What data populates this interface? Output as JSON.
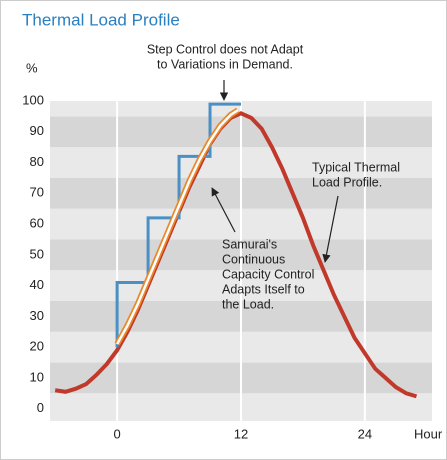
{
  "chart_data": {
    "type": "line",
    "title": "Thermal Load Profile",
    "ylabel": "%",
    "xlabel": "Hour",
    "xlim": [
      -6.5,
      30.5
    ],
    "ylim": [
      -4,
      100
    ],
    "xticks": [
      0,
      12,
      24
    ],
    "yticks": [
      0,
      10,
      20,
      30,
      40,
      50,
      60,
      70,
      80,
      90,
      100
    ],
    "grid": true,
    "series": [
      {
        "name": "Typical Thermal Load Profile",
        "color": "#c0392b",
        "x": [
          -6,
          -5,
          -4,
          -3,
          -2,
          -1,
          0,
          1,
          2,
          3,
          4,
          5,
          6,
          7,
          8,
          9,
          10,
          11,
          12,
          13,
          14,
          15,
          16,
          17,
          18,
          19,
          20,
          21,
          22,
          23,
          24,
          25,
          26,
          27,
          28,
          29
        ],
        "values": [
          6,
          5.5,
          6.5,
          8,
          11,
          14.5,
          19,
          25,
          32,
          40,
          48,
          56,
          64,
          72,
          79,
          86,
          91,
          94.5,
          96,
          94.5,
          91,
          85,
          78,
          70,
          62,
          53,
          45,
          37,
          30,
          23,
          18,
          13,
          10,
          7,
          5,
          4
        ]
      },
      {
        "name": "Step Control",
        "color": "#4a90c4",
        "x": [
          0,
          0,
          3,
          3,
          6,
          6,
          9,
          9,
          12
        ],
        "values": [
          20,
          41,
          41,
          62,
          62,
          82,
          82,
          99,
          99
        ]
      },
      {
        "name": "Continuous Capacity Control",
        "color": "#e8892c",
        "x": [
          0,
          1,
          2,
          3,
          4,
          5,
          6,
          7,
          8,
          9,
          10,
          11,
          11.7
        ],
        "values": [
          21,
          27,
          34,
          42,
          50,
          58,
          66,
          74,
          81,
          87,
          92,
          95.5,
          97
        ]
      }
    ],
    "annotations": [
      {
        "lines": [
          "Step Control does not Adapt",
          "to Variations in Demand."
        ]
      },
      {
        "lines": [
          "Typical Thermal",
          "Load Profile."
        ]
      },
      {
        "lines": [
          "Samurai's",
          "Continuous",
          "Capacity Control",
          "Adapts Itself to",
          "the Load."
        ]
      }
    ]
  }
}
